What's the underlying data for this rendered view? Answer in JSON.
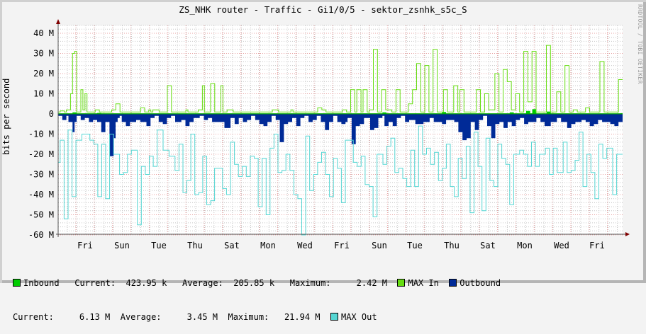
{
  "title": "ZS_NHK router - Traffic - Gi1/0/5 - sektor_zsnhk_s5c_S",
  "watermark": "RRDTOOL / TOBI OETIKER",
  "colors": {
    "inbound": "#00cc00",
    "max_in": "#66dd11",
    "outbound": "#002a97",
    "max_out": "#55d6d3",
    "grid_major": "#e8a0a0",
    "grid_minor": "#c8c8c8",
    "axis": "#800000"
  },
  "legend": {
    "row1": {
      "inbound_label": "Inbound",
      "current_label": "Current:",
      "current_value": "423.95 k",
      "average_label": "Average:",
      "average_value": "205.85 k",
      "maximum_label": "Maximum:",
      "maximum_value": "2.42 M",
      "max_in_label": "MAX In",
      "outbound_label": "Outbound"
    },
    "row2": {
      "current_label": "Current:",
      "current_value": "6.13 M",
      "average_label": "Average:",
      "average_value": "3.45 M",
      "maximum_label": "Maximum:",
      "maximum_value": "21.94 M",
      "max_out_label": "MAX Out"
    }
  },
  "chart_data": {
    "type": "area",
    "title": "ZS_NHK router - Traffic - Gi1/0/5 - sektor_zsnhk_s5c_S",
    "xlabel": "",
    "ylabel": "bits per second",
    "ylim": [
      -60000000,
      45000000
    ],
    "yticks": [
      40,
      30,
      20,
      10,
      0,
      -10,
      -20,
      -30,
      -40,
      -50,
      -60
    ],
    "ytick_labels": [
      "40 M",
      "30 M",
      "20 M",
      "10 M",
      "0",
      "-10 M",
      "-20 M",
      "-30 M",
      "-40 M",
      "-50 M",
      "-60 M"
    ],
    "categories": [
      "Fri",
      "Sun",
      "Tue",
      "Thu",
      "Sat",
      "Mon",
      "Wed",
      "Fri",
      "Sun",
      "Tue",
      "Thu",
      "Sat",
      "Mon",
      "Wed",
      "Fri"
    ],
    "grid": true,
    "legend_position": "bottom",
    "units": "M (millions of bits per second); outbound plotted negative",
    "series": [
      {
        "name": "MAX In",
        "style": "line",
        "values": [
          1,
          1.5,
          1.5,
          1,
          2,
          2,
          10,
          30,
          31,
          1,
          1,
          12,
          2,
          10,
          1,
          1,
          1,
          1,
          2,
          2,
          1,
          1,
          1,
          1,
          1,
          1,
          2,
          2,
          5,
          5,
          1,
          1,
          1,
          1,
          1,
          1,
          1,
          1,
          1,
          1,
          3,
          3,
          1,
          1,
          2,
          1,
          2,
          2,
          2,
          1,
          1,
          1,
          1,
          14,
          14,
          1,
          1,
          1,
          1,
          1,
          1,
          1,
          2,
          1,
          1,
          1,
          1,
          1,
          2,
          2,
          14,
          1,
          1,
          1,
          15,
          15,
          1,
          1,
          1,
          14,
          1,
          1,
          2,
          2,
          2,
          1,
          1,
          1,
          1,
          1,
          1,
          1,
          1,
          1,
          1,
          1,
          1,
          1,
          1,
          1,
          1,
          1,
          1,
          1,
          2,
          2,
          2,
          1,
          1,
          1,
          1,
          1,
          1,
          2,
          1,
          1,
          1,
          1,
          1,
          1,
          1,
          1,
          1,
          1,
          1,
          1,
          3,
          3,
          2,
          2,
          1,
          1,
          1,
          1,
          1,
          1,
          1,
          1,
          2,
          2,
          1,
          1,
          12,
          12,
          1,
          12,
          12,
          1,
          12,
          12,
          1,
          2,
          2,
          32,
          32,
          1,
          1,
          12,
          12,
          2,
          2,
          2,
          1,
          1,
          12,
          12,
          1,
          1,
          1,
          1,
          5,
          5,
          12,
          12,
          25,
          25,
          1,
          1,
          24,
          24,
          1,
          1,
          32,
          32,
          1,
          1,
          1,
          12,
          12,
          1,
          1,
          1,
          14,
          14,
          1,
          12,
          12,
          1,
          1,
          1,
          1,
          1,
          1,
          12,
          12,
          1,
          1,
          10,
          10,
          2,
          2,
          2,
          20,
          20,
          1,
          1,
          22,
          22,
          16,
          16,
          2,
          2,
          10,
          10,
          1,
          1,
          31,
          31,
          6,
          6,
          31,
          31,
          1,
          1,
          1,
          1,
          1,
          34,
          34,
          1,
          1,
          1,
          11,
          11,
          1,
          1,
          24,
          24,
          1,
          1,
          2,
          2,
          1,
          1,
          1,
          1,
          3,
          3,
          1,
          1,
          1,
          1,
          1,
          26,
          26,
          1,
          1,
          1,
          1,
          1,
          1,
          1,
          17,
          17
        ]
      },
      {
        "name": "Inbound",
        "style": "area",
        "values": [
          0.3,
          0.3,
          0.3,
          0.3,
          0.3,
          0.3,
          0.3,
          0.8,
          0.8,
          0.3,
          0.3,
          0.3,
          0.3,
          0.3,
          0.3,
          0.3,
          0.3,
          0.3,
          0.3,
          0.5,
          0.5,
          0.3,
          0.3,
          0.3,
          0.3,
          0.3,
          0.3,
          0.3,
          0.3,
          0.3,
          0.3,
          0.3,
          0.3,
          0.3,
          0.3,
          0.3,
          0.3,
          0.3,
          0.3,
          0.3,
          0.3,
          0.3,
          0.3,
          0.3,
          0.3,
          0.3,
          0.3,
          0.3,
          0.3,
          0.3,
          0.3,
          0.3,
          0.3,
          0.3,
          0.3,
          0.3,
          0.3,
          0.3,
          0.3,
          0.3,
          0.3,
          0.3,
          0.3,
          0.3,
          0.3,
          0.3,
          0.3,
          0.3,
          0.3,
          0.3,
          0.3,
          0.3,
          0.3,
          0.3,
          0.3,
          0.3,
          0.3,
          0.3,
          0.3,
          0.3,
          0.3,
          0.3,
          0.3,
          0.3,
          0.3,
          0.3,
          0.3,
          0.3,
          0.3,
          0.3,
          0.3,
          0.3,
          0.3,
          0.3,
          0.3,
          0.3,
          0.3,
          0.3,
          0.3,
          0.3,
          0.3,
          0.3,
          0.3,
          0.3,
          0.3,
          0.3,
          0.3,
          0.3,
          0.3,
          0.3,
          0.3,
          0.3,
          0.3,
          0.3,
          0.3,
          0.3,
          0.3,
          0.3,
          0.3,
          0.3,
          0.3,
          0.3,
          0.3,
          0.3,
          0.3,
          0.3,
          0.3,
          0.3,
          0.3,
          0.3,
          0.3,
          0.3,
          0.3,
          0.3,
          0.3,
          0.3,
          0.3,
          0.3,
          0.3,
          0.3,
          0.3,
          0.3,
          0.3,
          0.3,
          0.3,
          0.3,
          0.3,
          0.3,
          0.3,
          0.3,
          0.3,
          0.3,
          0.3,
          0.3,
          0.3,
          0.3,
          0.3,
          0.3,
          0.8,
          0.8,
          0.3,
          0.3,
          0.3,
          0.3,
          0.3,
          0.3,
          0.3,
          0.3,
          0.3,
          0.3,
          0.3,
          0.3,
          0.3,
          0.3,
          0.3,
          0.3,
          0.3,
          0.3,
          0.3,
          0.3,
          0.3,
          0.3,
          0.3,
          0.3,
          0.3,
          0.3,
          0.3,
          1,
          1,
          0.3,
          0.3,
          0.3,
          0.3,
          0.3,
          0.3,
          0.3,
          0.3,
          0.3,
          0.3,
          0.3,
          0.3,
          0.3,
          0.3,
          0.3,
          0.3,
          0.3,
          0.3,
          0.3,
          0.3,
          0.3,
          0.3,
          0.3,
          0.3,
          0.3,
          0.3,
          0.3,
          0.3,
          0.3,
          0.3,
          0.3,
          0.8,
          0.8,
          0.3,
          0.3,
          0.3,
          0.3,
          0.3,
          0.3,
          1.5,
          1.5,
          0.3,
          2.4,
          2.4,
          0.3,
          0.3,
          0.3,
          0.3,
          0.3,
          1.2,
          1.2,
          0.3,
          0.3,
          0.3,
          0.3,
          0.3,
          0.3,
          0.3,
          0.3,
          0.3,
          0.3,
          0.3,
          0.3,
          0.3,
          0.3,
          0.3,
          0.3,
          0.3,
          0.3,
          0.3,
          0.3,
          0.3,
          0.3,
          0.3,
          0.3,
          0.3,
          0.3,
          0.3,
          0.3,
          0.3,
          0.3,
          0.3,
          0.3,
          0.3,
          0.3,
          0.4
        ]
      },
      {
        "name": "Outbound",
        "style": "area",
        "negative": true,
        "values": [
          1,
          1,
          3,
          3,
          1,
          4,
          4,
          9,
          4,
          1,
          1,
          3,
          3,
          2,
          2,
          4,
          4,
          3,
          3,
          4,
          4,
          9,
          9,
          4,
          4,
          21,
          21,
          12,
          4,
          2,
          1,
          4,
          4,
          6,
          6,
          4,
          4,
          4,
          3,
          3,
          4,
          4,
          4,
          6,
          6,
          2,
          2,
          1,
          1,
          4,
          4,
          5,
          5,
          2,
          2,
          1,
          1,
          4,
          4,
          4,
          3,
          3,
          6,
          6,
          4,
          4,
          2,
          2,
          2,
          1,
          1,
          3,
          3,
          2,
          2,
          4,
          4,
          4,
          4,
          4,
          4,
          7,
          7,
          7,
          2,
          2,
          5,
          5,
          2,
          2,
          4,
          4,
          3,
          3,
          1,
          1,
          3,
          3,
          5,
          5,
          6,
          6,
          4,
          4,
          1,
          1,
          3,
          3,
          14,
          14,
          5,
          5,
          4,
          4,
          2,
          2,
          6,
          6,
          2,
          2,
          1,
          1,
          4,
          4,
          3,
          3,
          1,
          1,
          4,
          4,
          8,
          8,
          4,
          4,
          1,
          1,
          4,
          4,
          5,
          5,
          4,
          2,
          2,
          15,
          15,
          6,
          6,
          5,
          5,
          2,
          2,
          2,
          8,
          8,
          7,
          7,
          2,
          2,
          1,
          6,
          6,
          4,
          4,
          6,
          6,
          2,
          2,
          1,
          1,
          4,
          4,
          3,
          3,
          3,
          5,
          5,
          5,
          5,
          4,
          4,
          4,
          2,
          2,
          4,
          4,
          4,
          4,
          5,
          5,
          3,
          3,
          3,
          3,
          4,
          4,
          9,
          9,
          13,
          13,
          12,
          12,
          4,
          4,
          8,
          8,
          3,
          3,
          1,
          1,
          6,
          6,
          12,
          12,
          5,
          5,
          4,
          4,
          7,
          7,
          4,
          4,
          6,
          6,
          3,
          3,
          2,
          2,
          5,
          5,
          4,
          4,
          4,
          4,
          2,
          2,
          4,
          4,
          6,
          6,
          6,
          4,
          4,
          4,
          2,
          2,
          4,
          4,
          4,
          7,
          7,
          5,
          5,
          4,
          4,
          4,
          3,
          3,
          4,
          4,
          6,
          6,
          5,
          5,
          3,
          3,
          4,
          4,
          4,
          4,
          5,
          5,
          6,
          6,
          4,
          4
        ]
      },
      {
        "name": "MAX Out",
        "style": "line",
        "negative": true,
        "values": [
          24,
          13,
          13,
          52,
          52,
          8,
          8,
          41,
          41,
          13,
          13,
          13,
          10,
          10,
          10,
          10,
          13,
          13,
          15,
          15,
          41,
          41,
          15,
          15,
          42,
          42,
          10,
          10,
          20,
          20,
          20,
          30,
          30,
          29,
          29,
          20,
          20,
          18,
          18,
          18,
          55,
          55,
          26,
          26,
          30,
          30,
          21,
          21,
          26,
          26,
          8,
          8,
          8,
          18,
          18,
          18,
          21,
          21,
          21,
          28,
          28,
          15,
          15,
          39,
          39,
          33,
          33,
          10,
          10,
          40,
          40,
          39,
          39,
          21,
          21,
          45,
          45,
          43,
          43,
          27,
          27,
          27,
          27,
          37,
          37,
          40,
          40,
          14,
          14,
          25,
          25,
          31,
          31,
          26,
          26,
          31,
          31,
          21,
          21,
          22,
          22,
          46,
          46,
          22,
          22,
          50,
          50,
          17,
          17,
          10,
          10,
          29,
          29,
          28,
          28,
          20,
          20,
          28,
          28,
          40,
          40,
          42,
          42,
          60,
          60,
          11,
          11,
          38,
          38,
          30,
          30,
          24,
          24,
          19,
          19,
          30,
          30,
          41,
          41,
          22,
          22,
          27,
          27,
          44,
          44,
          13,
          13,
          13,
          13,
          24,
          24,
          26,
          26,
          21,
          21,
          35,
          35,
          36,
          36,
          51,
          51,
          20,
          20,
          20,
          25,
          25,
          16,
          16,
          12,
          12,
          29,
          29,
          27,
          27,
          32,
          32,
          36,
          36,
          18,
          18,
          36,
          36,
          6,
          6,
          20,
          20,
          17,
          17,
          25,
          25,
          19,
          19,
          33,
          33,
          27,
          27,
          15,
          15,
          36,
          36,
          41,
          41,
          22,
          22,
          32,
          32,
          16,
          16,
          49,
          49,
          9,
          9,
          26,
          26,
          48,
          48,
          12,
          12,
          33,
          33,
          36,
          36,
          15,
          15,
          22,
          22,
          25,
          25,
          45,
          45,
          20,
          20,
          20,
          18,
          18,
          20,
          20,
          26,
          26,
          14,
          14,
          26,
          26,
          20,
          20,
          20,
          17,
          17,
          30,
          30,
          17,
          17,
          29,
          29,
          29,
          14,
          14,
          29,
          29,
          28,
          28,
          23,
          23,
          9,
          9,
          36,
          36,
          20,
          20,
          29,
          29,
          42,
          42,
          15,
          15,
          22,
          22,
          17,
          17,
          17,
          40,
          40,
          20,
          20,
          20
        ]
      }
    ]
  }
}
